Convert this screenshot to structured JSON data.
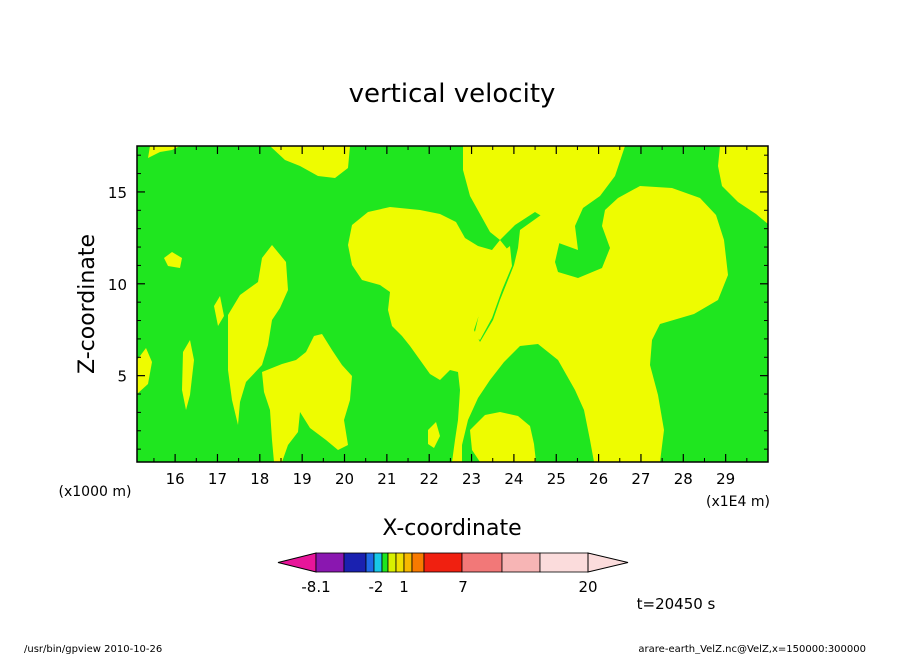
{
  "chart_data": {
    "type": "heatmap",
    "title": "vertical velocity",
    "xlabel": "X-coordinate",
    "ylabel": "Z-coordinate",
    "x_unit": "(x1E4 m)",
    "y_unit": "(x1000 m)",
    "xlim": [
      15.1,
      30.0
    ],
    "ylim": [
      0.3,
      17.5
    ],
    "x_ticks": [
      16,
      17,
      18,
      19,
      20,
      21,
      22,
      23,
      24,
      25,
      26,
      27,
      28,
      29
    ],
    "y_ticks": [
      5,
      10,
      15
    ],
    "colorbar": {
      "tick_labels": [
        "-8.1",
        "-2",
        "1",
        "7",
        "20"
      ],
      "colors": [
        "#e8159a",
        "#8a17b0",
        "#1a21b0",
        "#1f6ae8",
        "#18c8e8",
        "#1ee61e",
        "#d8f000",
        "#f0e000",
        "#f8b800",
        "#f87a00",
        "#f02010",
        "#f27878",
        "#f7b5b5",
        "#fbdcdc"
      ]
    },
    "fields": {
      "background_color": "#1fe61f",
      "positive_color": "#eefc00"
    },
    "time_label": "t=20450 s"
  },
  "footer": {
    "left": "/usr/bin/gpview  2010-10-26",
    "right": "arare-earth_VelZ.nc@VelZ,x=150000:300000"
  }
}
